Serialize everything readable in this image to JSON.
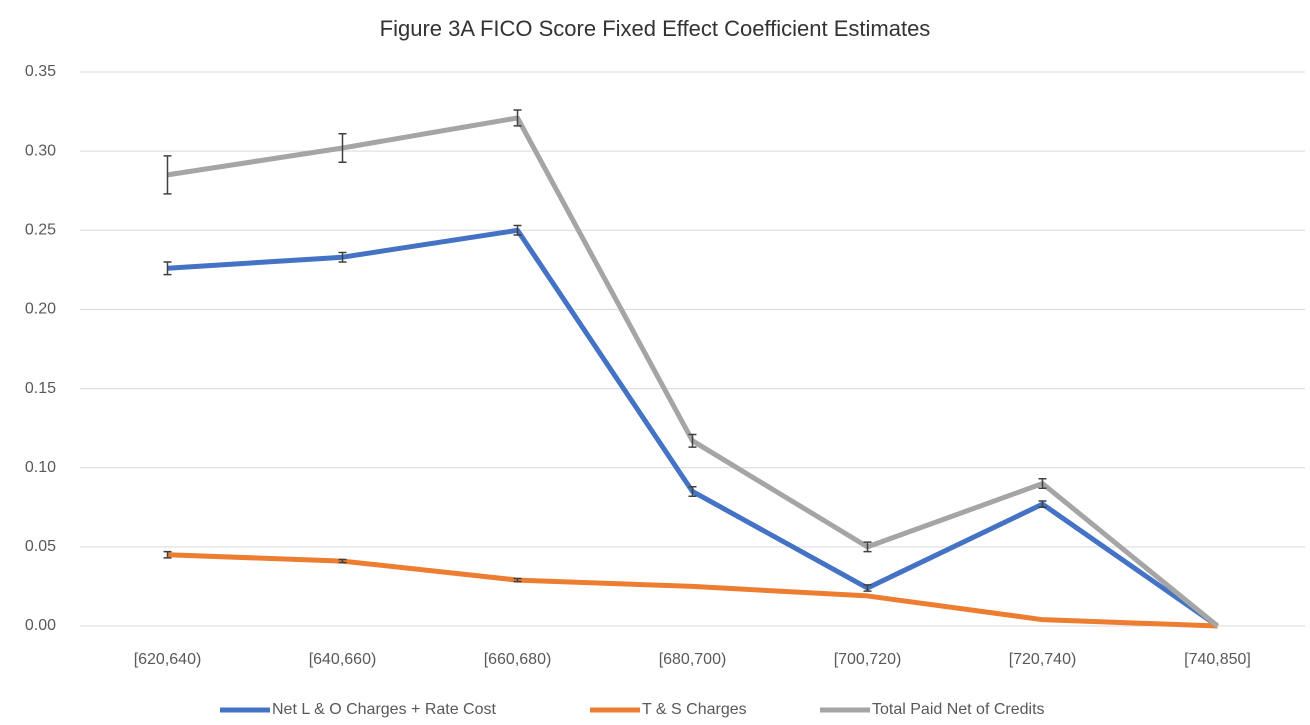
{
  "chart_data": {
    "type": "line",
    "title": "Figure 3A FICO Score Fixed Effect Coefficient Estimates",
    "categories": [
      "[620,640)",
      "[640,660)",
      "[660,680)",
      "[680,700)",
      "[700,720)",
      "[720,740)",
      "[740,850]"
    ],
    "series": [
      {
        "name": "Net L & O Charges + Rate Cost",
        "color": "#4472c4",
        "values": [
          0.226,
          0.233,
          0.25,
          0.085,
          0.024,
          0.077,
          0.0
        ],
        "errors": [
          0.004,
          0.003,
          0.003,
          0.003,
          0.002,
          0.002,
          null
        ]
      },
      {
        "name": "T & S Charges",
        "color": "#ed7d31",
        "values": [
          0.045,
          0.041,
          0.029,
          0.025,
          0.019,
          0.004,
          0.0
        ],
        "errors": [
          0.002,
          0.001,
          0.001,
          null,
          null,
          null,
          null
        ]
      },
      {
        "name": "Total Paid Net of Credits",
        "color": "#a5a5a5",
        "values": [
          0.285,
          0.302,
          0.321,
          0.117,
          0.05,
          0.09,
          0.0
        ],
        "errors": [
          0.012,
          0.009,
          0.005,
          0.004,
          0.003,
          0.003,
          null
        ]
      }
    ],
    "ylim": [
      0,
      0.35
    ],
    "yticks": [
      {
        "value": 0,
        "label": "0.00"
      },
      {
        "value": 0.05,
        "label": "0.05"
      },
      {
        "value": 0.1,
        "label": "0.10"
      },
      {
        "value": 0.15,
        "label": "0.15"
      },
      {
        "value": 0.2,
        "label": "0.20"
      },
      {
        "value": 0.25,
        "label": "0.25"
      },
      {
        "value": 0.3,
        "label": "0.30"
      },
      {
        "value": 0.35,
        "label": "0.35"
      }
    ],
    "grid": true,
    "legend": "bottom"
  }
}
